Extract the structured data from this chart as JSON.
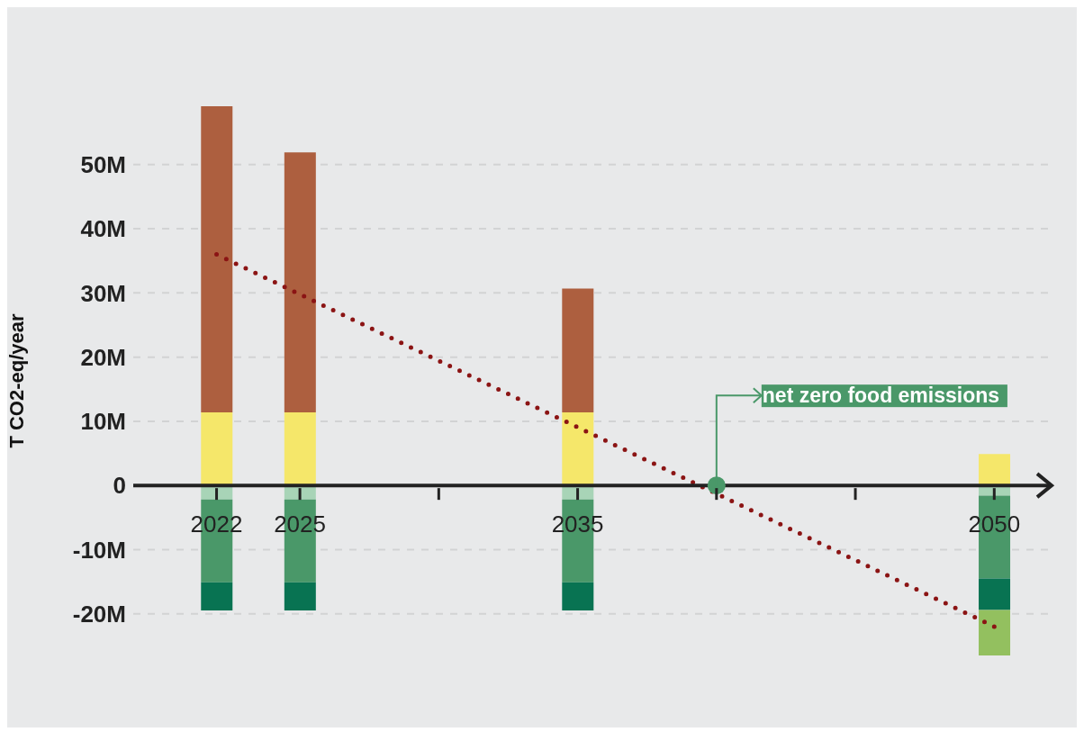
{
  "chart_data": {
    "type": "bar",
    "ylabel": "T CO2-eq/year",
    "x": [
      2022,
      2025,
      2035,
      2050
    ],
    "stacked": true,
    "xlim": [
      2019,
      2052
    ],
    "xticks": [
      2022,
      2025,
      {
        "value": 2030,
        "label": null
      },
      2035,
      {
        "value": 2040,
        "label": null
      },
      {
        "value": 2045,
        "label": null
      },
      2050
    ],
    "ylim": [
      -26.5,
      59.1
    ],
    "yticks": [
      {
        "value": -20,
        "label": "-20M"
      },
      {
        "value": -10,
        "label": "-10M"
      },
      0,
      {
        "value": 10,
        "label": "10M"
      },
      {
        "value": 20,
        "label": "20M"
      },
      {
        "value": 30,
        "label": "30M"
      },
      {
        "value": 40,
        "label": "40M"
      },
      {
        "value": 50,
        "label": "50M"
      }
    ],
    "grid": "y",
    "legend": false,
    "series": [
      {
        "color": "#f5e76a",
        "values": [
          11.4,
          11.4,
          11.4,
          4.9
        ]
      },
      {
        "color": "#ad5f3f",
        "values": [
          47.7,
          40.5,
          19.3,
          null
        ]
      },
      {
        "color": "#a8d4b7",
        "values": [
          -2.2,
          -2.2,
          -2.2,
          -1.6
        ]
      },
      {
        "color": "#4a9869",
        "values": [
          -12.9,
          -12.9,
          -12.9,
          -12.9
        ]
      },
      {
        "color": "#087352",
        "values": [
          -4.4,
          -4.4,
          -4.4,
          -4.9
        ]
      },
      {
        "color": "#93c05f",
        "values": [
          null,
          null,
          null,
          -7.1
        ]
      },
      {
        "type": "line",
        "color": "#8b1414",
        "x": [
          2022,
          2050
        ],
        "values": [
          36,
          -22
        ],
        "line_style": "dotted",
        "marker": "none"
      },
      {
        "type": "scatter",
        "color": "#4a9869",
        "x": [
          2040
        ],
        "values": [
          0
        ],
        "marker": "circle"
      }
    ],
    "annotations": [
      {
        "text": "net zero food emissions",
        "x": 2040,
        "y": 0
      }
    ]
  }
}
